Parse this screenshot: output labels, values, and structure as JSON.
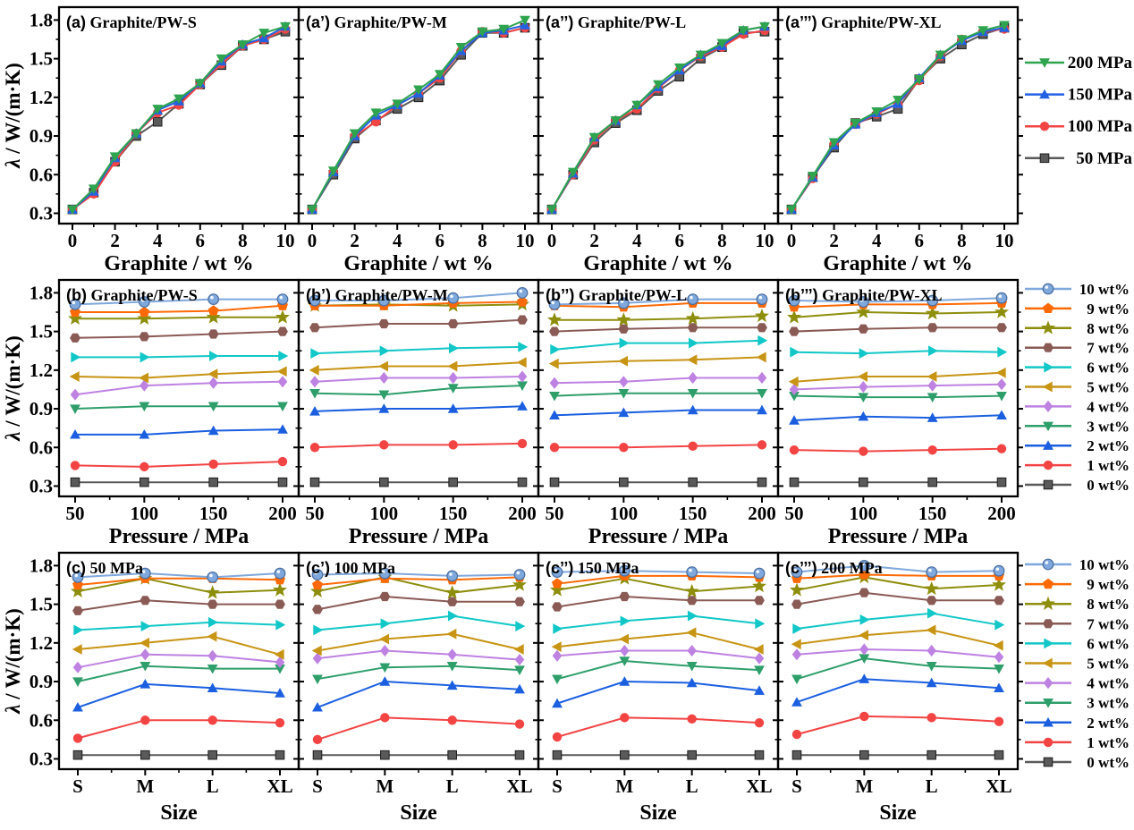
{
  "figure": {
    "background": "#ffffff",
    "text_color": "#000000",
    "axis_color": "#000000"
  },
  "chart_data": {
    "type": "line",
    "ylabel": "λ / W/(m·K)",
    "ylim": [
      0.3,
      1.8
    ],
    "yticks": [
      0.3,
      0.6,
      0.9,
      1.2,
      1.5,
      1.8
    ],
    "grid": false,
    "legend_position": "right",
    "sizes": [
      "S",
      "M",
      "L",
      "XL"
    ],
    "pressures_mpa": [
      50,
      100,
      150,
      200
    ],
    "graphite_wt_percent": [
      0,
      1,
      2,
      3,
      4,
      5,
      6,
      7,
      8,
      9,
      10
    ],
    "lambda_W_mK_by_size_wt_pressure": {
      "S": [
        [
          0.33,
          0.33,
          0.33,
          0.33
        ],
        [
          0.46,
          0.45,
          0.47,
          0.49
        ],
        [
          0.7,
          0.7,
          0.73,
          0.74
        ],
        [
          0.9,
          0.92,
          0.92,
          0.92
        ],
        [
          1.01,
          1.08,
          1.1,
          1.11
        ],
        [
          1.15,
          1.14,
          1.17,
          1.19
        ],
        [
          1.3,
          1.3,
          1.31,
          1.31
        ],
        [
          1.45,
          1.46,
          1.48,
          1.5
        ],
        [
          1.6,
          1.6,
          1.61,
          1.61
        ],
        [
          1.65,
          1.65,
          1.66,
          1.7
        ],
        [
          1.71,
          1.73,
          1.75,
          1.75
        ]
      ],
      "M": [
        [
          0.33,
          0.33,
          0.33,
          0.33
        ],
        [
          0.6,
          0.62,
          0.62,
          0.63
        ],
        [
          0.88,
          0.9,
          0.9,
          0.92
        ],
        [
          1.02,
          1.01,
          1.06,
          1.08
        ],
        [
          1.11,
          1.14,
          1.14,
          1.15
        ],
        [
          1.2,
          1.23,
          1.23,
          1.26
        ],
        [
          1.33,
          1.35,
          1.37,
          1.38
        ],
        [
          1.53,
          1.56,
          1.56,
          1.59
        ],
        [
          1.7,
          1.71,
          1.7,
          1.71
        ],
        [
          1.7,
          1.7,
          1.72,
          1.73
        ],
        [
          1.74,
          1.74,
          1.76,
          1.8
        ]
      ],
      "L": [
        [
          0.33,
          0.33,
          0.33,
          0.33
        ],
        [
          0.6,
          0.6,
          0.61,
          0.62
        ],
        [
          0.85,
          0.87,
          0.89,
          0.89
        ],
        [
          1.0,
          1.02,
          1.02,
          1.02
        ],
        [
          1.1,
          1.11,
          1.14,
          1.14
        ],
        [
          1.25,
          1.27,
          1.28,
          1.3
        ],
        [
          1.36,
          1.41,
          1.41,
          1.43
        ],
        [
          1.5,
          1.52,
          1.53,
          1.53
        ],
        [
          1.59,
          1.59,
          1.6,
          1.62
        ],
        [
          1.7,
          1.69,
          1.72,
          1.72
        ],
        [
          1.71,
          1.72,
          1.75,
          1.75
        ]
      ],
      "XL": [
        [
          0.33,
          0.33,
          0.33,
          0.33
        ],
        [
          0.58,
          0.57,
          0.58,
          0.59
        ],
        [
          0.81,
          0.84,
          0.83,
          0.85
        ],
        [
          1.0,
          0.99,
          0.99,
          1.0
        ],
        [
          1.05,
          1.07,
          1.08,
          1.09
        ],
        [
          1.11,
          1.15,
          1.15,
          1.18
        ],
        [
          1.34,
          1.33,
          1.35,
          1.34
        ],
        [
          1.5,
          1.52,
          1.53,
          1.53
        ],
        [
          1.61,
          1.65,
          1.64,
          1.65
        ],
        [
          1.69,
          1.71,
          1.71,
          1.72
        ],
        [
          1.74,
          1.73,
          1.74,
          1.76
        ]
      ]
    },
    "pressure_series": [
      {
        "label": "200 MPa",
        "pressure": 200,
        "color": "#2EA44F",
        "marker": "triangle-down"
      },
      {
        "label": "150 MPa",
        "pressure": 150,
        "color": "#2262E2",
        "marker": "triangle-up"
      },
      {
        "label": "100 MPa",
        "pressure": 100,
        "color": "#F34444",
        "marker": "circle"
      },
      {
        "label": "50 MPa",
        "pressure": 50,
        "color": "#5A5A5A",
        "marker": "square"
      }
    ],
    "wt_series": [
      {
        "label": "10 wt%",
        "wt": 10,
        "color": "#7FA8DC",
        "edge": "#4A6EA0",
        "marker": "sphere"
      },
      {
        "label": "9 wt%",
        "wt": 9,
        "color": "#FF6A07",
        "marker": "pentagon"
      },
      {
        "label": "8 wt%",
        "wt": 8,
        "color": "#8E8E0D",
        "marker": "star"
      },
      {
        "label": "7 wt%",
        "wt": 7,
        "color": "#8A5A55",
        "marker": "hexagon"
      },
      {
        "label": "6 wt%",
        "wt": 6,
        "color": "#12C7C7",
        "marker": "triangle-right"
      },
      {
        "label": "5 wt%",
        "wt": 5,
        "color": "#C79414",
        "marker": "triangle-left"
      },
      {
        "label": "4 wt%",
        "wt": 4,
        "color": "#BE82E2",
        "marker": "diamond"
      },
      {
        "label": "3 wt%",
        "wt": 3,
        "color": "#2E9E6B",
        "marker": "triangle-down"
      },
      {
        "label": "2 wt%",
        "wt": 2,
        "color": "#1B5FE0",
        "marker": "triangle-up"
      },
      {
        "label": "1 wt%",
        "wt": 1,
        "color": "#F34444",
        "marker": "circle"
      },
      {
        "label": "0 wt%",
        "wt": 0,
        "color": "#5A5A5A",
        "marker": "square"
      }
    ],
    "rows": [
      {
        "key": "a",
        "xlabel": "Graphite / wt %",
        "xticks": [
          0,
          2,
          4,
          6,
          8,
          10
        ],
        "xminor": [
          1,
          3,
          5,
          7,
          9
        ],
        "legend": "pressure_series",
        "panels": [
          {
            "tag": "(a)",
            "title": "Graphite/PW-S",
            "size": "S"
          },
          {
            "tag": "(a’)",
            "title": "Graphite/PW-M",
            "size": "M"
          },
          {
            "tag": "(a’’)",
            "title": "Graphite/PW-L",
            "size": "L"
          },
          {
            "tag": "(a’’’)",
            "title": "Graphite/PW-XL",
            "size": "XL"
          }
        ]
      },
      {
        "key": "b",
        "xlabel": "Pressure / MPa",
        "xticks": [
          50,
          100,
          150,
          200
        ],
        "xminor": [
          75,
          125,
          175
        ],
        "legend": "wt_series",
        "panels": [
          {
            "tag": "(b)",
            "title": "Graphite/PW-S",
            "size": "S"
          },
          {
            "tag": "(b’)",
            "title": "Graphite/PW-M",
            "size": "M"
          },
          {
            "tag": "(b’’)",
            "title": "Graphite/PW-L",
            "size": "L"
          },
          {
            "tag": "(b’’’)",
            "title": "Graphite/PW-XL",
            "size": "XL"
          }
        ]
      },
      {
        "key": "c",
        "xlabel": "Size",
        "xticks": [
          "S",
          "M",
          "L",
          "XL"
        ],
        "xminor_index": [
          0.5,
          1.5,
          2.5
        ],
        "legend": "wt_series",
        "panels": [
          {
            "tag": "(c)",
            "title": "50 MPa",
            "pressure_index": 0
          },
          {
            "tag": "(c’)",
            "title": "100 MPa",
            "pressure_index": 1
          },
          {
            "tag": "(c’’)",
            "title": "150 MPa",
            "pressure_index": 2
          },
          {
            "tag": "(c’’’)",
            "title": "200 MPa",
            "pressure_index": 3
          }
        ]
      }
    ]
  }
}
